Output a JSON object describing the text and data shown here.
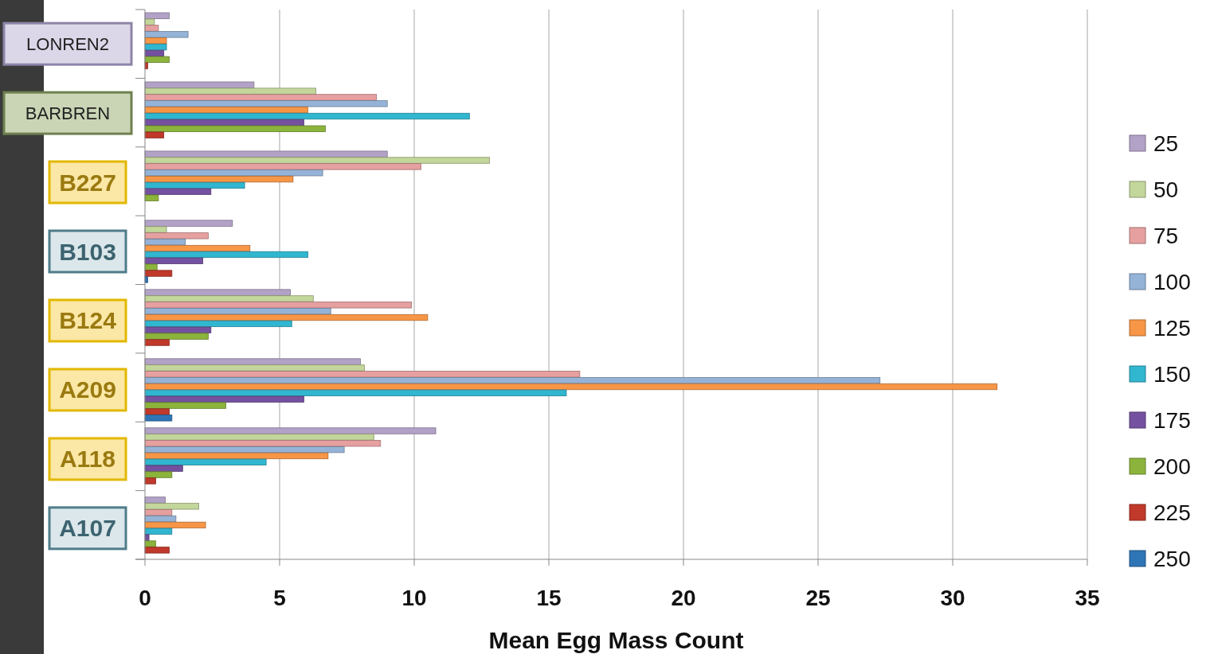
{
  "chart_data": {
    "type": "bar",
    "orientation": "horizontal",
    "xlabel": "Mean Egg Mass Count",
    "categories": [
      "LONREN2",
      "BARBREN",
      "B227",
      "B103",
      "B124",
      "A209",
      "A118",
      "A107"
    ],
    "xlim": [
      0,
      35
    ],
    "xticks": [
      0,
      5,
      10,
      15,
      20,
      25,
      30,
      35
    ],
    "grid": "x",
    "legend": "right",
    "series": [
      {
        "name": "25",
        "color": "#b3a2c7",
        "values": [
          0.9,
          4.05,
          9.0,
          3.25,
          5.4,
          8.0,
          10.8,
          0.75
        ]
      },
      {
        "name": "50",
        "color": "#c3d69b",
        "values": [
          0.35,
          6.35,
          12.8,
          0.8,
          6.25,
          8.15,
          8.5,
          2.0
        ]
      },
      {
        "name": "75",
        "color": "#e6a0a0",
        "values": [
          0.5,
          8.6,
          10.25,
          2.35,
          9.9,
          16.15,
          8.75,
          1.0
        ]
      },
      {
        "name": "100",
        "color": "#95b3d7",
        "values": [
          1.6,
          9.0,
          6.6,
          1.5,
          6.9,
          27.3,
          7.4,
          1.15
        ]
      },
      {
        "name": "125",
        "color": "#f79646",
        "values": [
          0.8,
          6.05,
          5.5,
          3.9,
          10.5,
          31.65,
          6.8,
          2.25
        ]
      },
      {
        "name": "150",
        "color": "#31b6d0",
        "values": [
          0.8,
          12.05,
          3.7,
          6.05,
          5.45,
          15.65,
          4.5,
          1.0
        ]
      },
      {
        "name": "175",
        "color": "#7451a0",
        "values": [
          0.7,
          5.9,
          2.45,
          2.15,
          2.45,
          5.9,
          1.4,
          0.15
        ]
      },
      {
        "name": "200",
        "color": "#8cb43c",
        "values": [
          0.9,
          6.7,
          0.5,
          0.45,
          2.35,
          3.0,
          1.0,
          0.4
        ]
      },
      {
        "name": "225",
        "color": "#c0392b",
        "values": [
          0.1,
          0.7,
          0,
          1.0,
          0.9,
          0.9,
          0.4,
          0.9
        ]
      },
      {
        "name": "250",
        "color": "#2e75b6",
        "values": [
          0,
          0,
          0,
          0.1,
          0,
          1.0,
          0,
          0
        ]
      }
    ]
  }
}
